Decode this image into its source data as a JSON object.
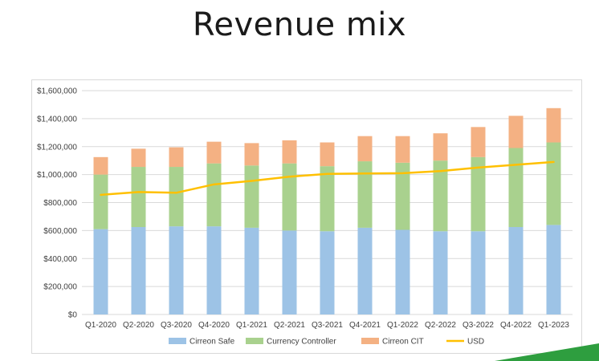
{
  "slide": {
    "title": "Revenue mix"
  },
  "colors": {
    "cirreon_safe": "#9dc3e6",
    "currency_controller": "#a9d18e",
    "cirreon_cit": "#f4b183",
    "usd": "#ffc000",
    "grid": "#d9d9d9",
    "accent": "#2e9e3f"
  },
  "chart_data": {
    "type": "bar",
    "stacked": true,
    "categories": [
      "Q1-2020",
      "Q2-2020",
      "Q3-2020",
      "Q4-2020",
      "Q1-2021",
      "Q2-2021",
      "Q3-2021",
      "Q4-2021",
      "Q1-2022",
      "Q2-2022",
      "Q3-2022",
      "Q4-2022",
      "Q1-2023"
    ],
    "series": [
      {
        "name": "Cirreon Safe",
        "type": "bar",
        "values": [
          610000,
          625000,
          630000,
          630000,
          620000,
          600000,
          595000,
          620000,
          605000,
          595000,
          595000,
          625000,
          640000
        ]
      },
      {
        "name": "Currency Controller",
        "type": "bar",
        "values": [
          390000,
          430000,
          425000,
          450000,
          445000,
          480000,
          465000,
          475000,
          480000,
          505000,
          530000,
          565000,
          590000
        ]
      },
      {
        "name": "Cirreon CIT",
        "type": "bar",
        "values": [
          125000,
          130000,
          140000,
          155000,
          160000,
          165000,
          170000,
          180000,
          190000,
          195000,
          215000,
          230000,
          245000
        ]
      },
      {
        "name": "USD",
        "type": "line",
        "values": [
          855000,
          875000,
          870000,
          930000,
          955000,
          985000,
          1005000,
          1008000,
          1010000,
          1025000,
          1050000,
          1070000,
          1090000
        ]
      }
    ],
    "y_ticks": [
      "$0",
      "$200,000",
      "$400,000",
      "$600,000",
      "$800,000",
      "$1,000,000",
      "$1,200,000",
      "$1,400,000",
      "$1,600,000"
    ],
    "ylim": [
      0,
      1600000
    ],
    "grid": true,
    "legend_position": "bottom"
  }
}
